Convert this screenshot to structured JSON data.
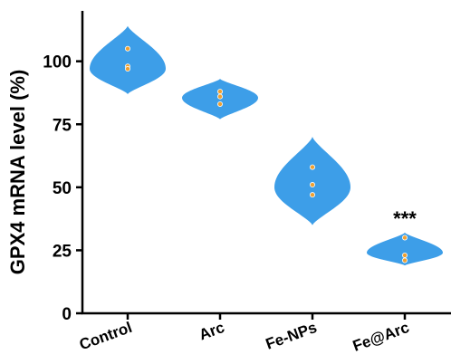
{
  "chart_data": {
    "type": "violin",
    "title": "",
    "xlabel": "",
    "ylabel": "GPX4 mRNA level (%)",
    "ylim": [
      0,
      120
    ],
    "yticks": [
      0,
      25,
      50,
      75,
      100
    ],
    "grid": false,
    "categories": [
      "Control",
      "Arc",
      "Fe-NPs",
      "Fe@Arc"
    ],
    "points": [
      [
        105,
        98,
        97
      ],
      [
        88,
        86,
        83
      ],
      [
        58,
        51,
        47
      ],
      [
        30,
        23,
        21
      ]
    ],
    "violin_range": [
      [
        87,
        114
      ],
      [
        77,
        93
      ],
      [
        35,
        70
      ],
      [
        19,
        32
      ]
    ],
    "violin_mode": [
      97,
      85.5,
      50,
      24
    ],
    "significance": [
      "",
      "",
      "",
      "***"
    ],
    "colors": {
      "violin": "#3d9ee8",
      "point": "#f0a030",
      "axis": "#000000"
    }
  }
}
